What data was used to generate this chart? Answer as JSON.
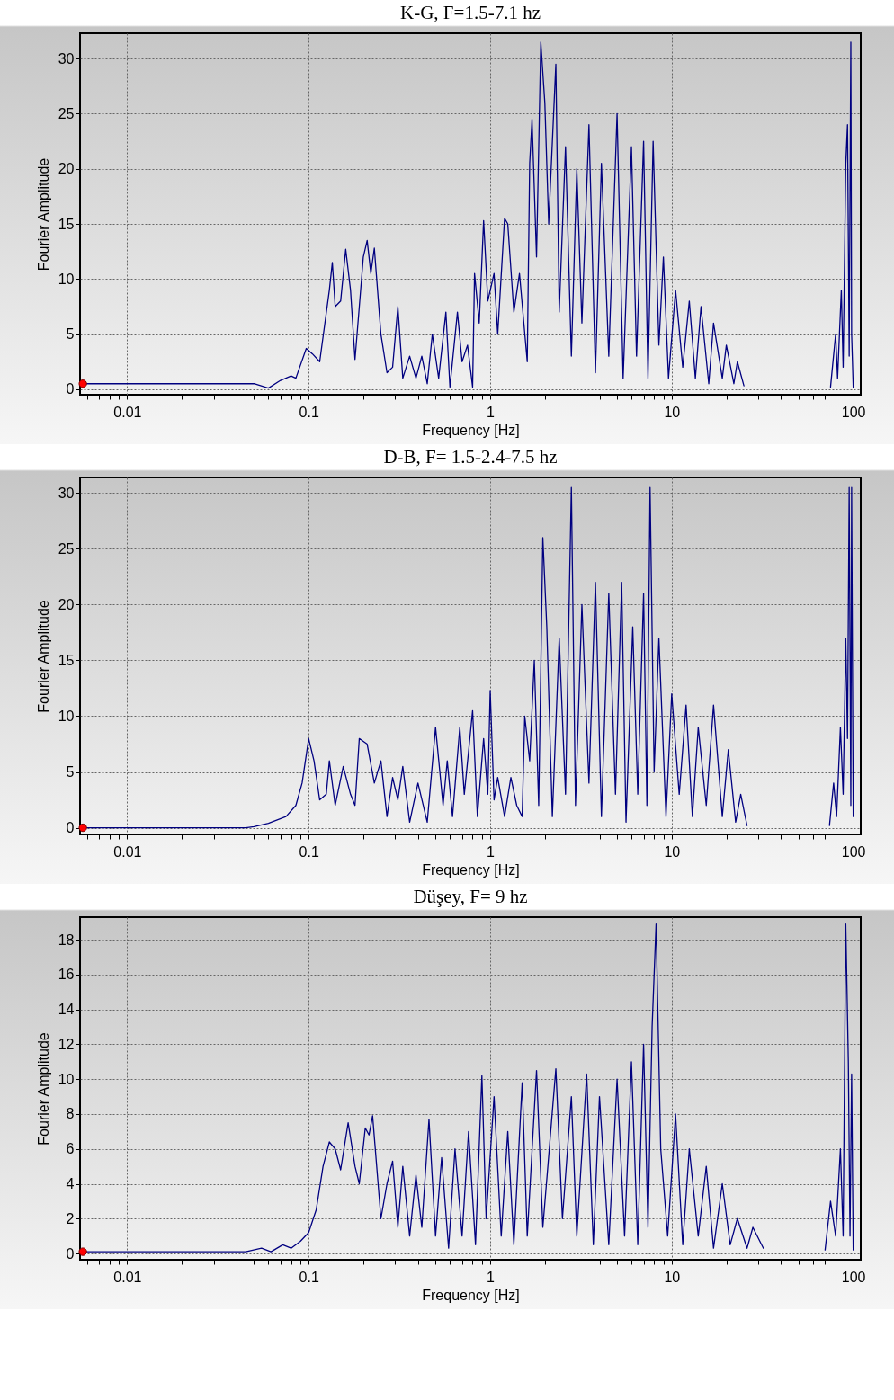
{
  "chart_data": [
    {
      "type": "line",
      "title": "K-G, F=1.5-7.1 hz",
      "xlabel": "Frequency [Hz]",
      "ylabel": "Fourier Amplitude",
      "log": "x",
      "grid": true,
      "xlim": [
        0.0055,
        110
      ],
      "ylim": [
        -0.5,
        32.3
      ],
      "xticks": [
        {
          "value": 0.006,
          "label": null
        },
        {
          "value": 0.007,
          "label": null
        },
        {
          "value": 0.008,
          "label": null
        },
        {
          "value": 0.009,
          "label": null
        },
        0.01,
        {
          "value": 0.02,
          "label": null
        },
        {
          "value": 0.03,
          "label": null
        },
        {
          "value": 0.04,
          "label": null
        },
        {
          "value": 0.05,
          "label": null
        },
        {
          "value": 0.06,
          "label": null
        },
        {
          "value": 0.07,
          "label": null
        },
        {
          "value": 0.08,
          "label": null
        },
        {
          "value": 0.09,
          "label": null
        },
        0.1,
        {
          "value": 0.2,
          "label": null
        },
        {
          "value": 0.3,
          "label": null
        },
        {
          "value": 0.4,
          "label": null
        },
        {
          "value": 0.5,
          "label": null
        },
        {
          "value": 0.6,
          "label": null
        },
        {
          "value": 0.7,
          "label": null
        },
        {
          "value": 0.8,
          "label": null
        },
        {
          "value": 0.9,
          "label": null
        },
        1,
        {
          "value": 2,
          "label": null
        },
        {
          "value": 3,
          "label": null
        },
        {
          "value": 4,
          "label": null
        },
        {
          "value": 5,
          "label": null
        },
        {
          "value": 6,
          "label": null
        },
        {
          "value": 7,
          "label": null
        },
        {
          "value": 8,
          "label": null
        },
        {
          "value": 9,
          "label": null
        },
        10,
        {
          "value": 20,
          "label": null
        },
        {
          "value": 30,
          "label": null
        },
        {
          "value": 40,
          "label": null
        },
        {
          "value": 50,
          "label": null
        },
        {
          "value": 60,
          "label": null
        },
        {
          "value": 70,
          "label": null
        },
        {
          "value": 80,
          "label": null
        },
        {
          "value": 90,
          "label": null
        },
        100
      ],
      "yticks": [
        0,
        5,
        10,
        15,
        20,
        25,
        30
      ],
      "series": [
        {
          "color": "#000080",
          "x": [
            0.0057,
            0.045,
            0.05,
            0.06,
            0.07,
            0.08,
            0.085,
            0.097,
            0.105,
            0.115,
            0.13,
            0.135,
            0.14,
            0.15,
            0.16,
            0.17,
            0.18,
            0.2,
            0.21,
            0.22,
            0.23,
            0.25,
            0.27,
            0.29,
            0.31,
            0.33,
            0.36,
            0.39,
            0.42,
            0.45,
            0.48,
            0.52,
            0.57,
            0.6,
            0.66,
            0.7,
            0.75,
            0.8,
            0.82,
            0.87,
            0.92,
            0.97,
            1.05,
            1.1,
            1.2,
            1.25,
            1.35,
            1.45,
            1.6,
            1.65,
            1.7,
            1.8,
            1.9,
            2.0,
            2.1,
            2.3,
            2.4,
            2.6,
            2.8,
            3.0,
            3.2,
            3.5,
            3.8,
            4.1,
            4.5,
            5.0,
            5.4,
            6.0,
            6.4,
            7.0,
            7.4,
            7.9,
            8.5,
            9.0,
            9.6,
            10.5,
            11.5,
            12.5,
            13.5,
            14.5,
            16,
            17,
            19,
            20,
            22,
            23,
            25,
            50,
            75,
            80,
            82,
            86,
            88,
            91,
            93,
            95,
            97,
            98,
            100
          ],
          "values": [
            0.5,
            0.5,
            0.5,
            0.1,
            0.8,
            1.2,
            1.0,
            3.7,
            3.2,
            2.5,
            9,
            11.5,
            7.5,
            8,
            12.7,
            9,
            2.7,
            12,
            13.5,
            10.5,
            12.8,
            5,
            1.5,
            2,
            7.5,
            1,
            3,
            1,
            3,
            0.5,
            5,
            1,
            7,
            0.2,
            7,
            2.5,
            4,
            0.2,
            10.5,
            6,
            15.3,
            8,
            10.5,
            5,
            15.5,
            15,
            7,
            10.5,
            2.5,
            20.5,
            24.5,
            12,
            31.5,
            26,
            15,
            29.5,
            7,
            22,
            3,
            20,
            6,
            24,
            1.5,
            20.5,
            3,
            25,
            1,
            22,
            3,
            22.5,
            1,
            22.5,
            4,
            12,
            1,
            9,
            2,
            8,
            1,
            7.5,
            0.5,
            6,
            1,
            4,
            0.5,
            2.5,
            0.3,
            null,
            0.2,
            5,
            1,
            9,
            2,
            20.5,
            24,
            3,
            31.5,
            5,
            0.2
          ]
        },
        {
          "type": "scatter",
          "color": "#ff0000",
          "marker": "circle",
          "x": [
            0.0057
          ],
          "values": [
            0.5
          ]
        }
      ]
    },
    {
      "type": "line",
      "title": "D-B, F= 1.5-2.4-7.5 hz",
      "xlabel": "Frequency [Hz]",
      "ylabel": "Fourier Amplitude",
      "log": "x",
      "grid": true,
      "xlim": [
        0.0055,
        110
      ],
      "ylim": [
        -0.6,
        31.4
      ],
      "xticks": [
        {
          "value": 0.006,
          "label": null
        },
        {
          "value": 0.007,
          "label": null
        },
        {
          "value": 0.008,
          "label": null
        },
        {
          "value": 0.009,
          "label": null
        },
        0.01,
        {
          "value": 0.02,
          "label": null
        },
        {
          "value": 0.03,
          "label": null
        },
        {
          "value": 0.04,
          "label": null
        },
        {
          "value": 0.05,
          "label": null
        },
        {
          "value": 0.06,
          "label": null
        },
        {
          "value": 0.07,
          "label": null
        },
        {
          "value": 0.08,
          "label": null
        },
        {
          "value": 0.09,
          "label": null
        },
        0.1,
        {
          "value": 0.2,
          "label": null
        },
        {
          "value": 0.3,
          "label": null
        },
        {
          "value": 0.4,
          "label": null
        },
        {
          "value": 0.5,
          "label": null
        },
        {
          "value": 0.6,
          "label": null
        },
        {
          "value": 0.7,
          "label": null
        },
        {
          "value": 0.8,
          "label": null
        },
        {
          "value": 0.9,
          "label": null
        },
        1,
        {
          "value": 2,
          "label": null
        },
        {
          "value": 3,
          "label": null
        },
        {
          "value": 4,
          "label": null
        },
        {
          "value": 5,
          "label": null
        },
        {
          "value": 6,
          "label": null
        },
        {
          "value": 7,
          "label": null
        },
        {
          "value": 8,
          "label": null
        },
        {
          "value": 9,
          "label": null
        },
        10,
        {
          "value": 20,
          "label": null
        },
        {
          "value": 30,
          "label": null
        },
        {
          "value": 40,
          "label": null
        },
        {
          "value": 50,
          "label": null
        },
        {
          "value": 60,
          "label": null
        },
        {
          "value": 70,
          "label": null
        },
        {
          "value": 80,
          "label": null
        },
        {
          "value": 90,
          "label": null
        },
        100
      ],
      "yticks": [
        0,
        5,
        10,
        15,
        20,
        25,
        30
      ],
      "series": [
        {
          "color": "#000080",
          "x": [
            0.0057,
            0.045,
            0.05,
            0.06,
            0.075,
            0.085,
            0.092,
            0.1,
            0.107,
            0.115,
            0.125,
            0.13,
            0.14,
            0.155,
            0.17,
            0.18,
            0.19,
            0.21,
            0.23,
            0.25,
            0.27,
            0.29,
            0.31,
            0.33,
            0.36,
            0.4,
            0.45,
            0.5,
            0.55,
            0.58,
            0.62,
            0.68,
            0.72,
            0.8,
            0.85,
            0.92,
            0.97,
            1.0,
            1.05,
            1.1,
            1.2,
            1.3,
            1.4,
            1.5,
            1.55,
            1.65,
            1.75,
            1.85,
            1.95,
            2.05,
            2.2,
            2.4,
            2.6,
            2.8,
            2.95,
            3.2,
            3.5,
            3.8,
            4.1,
            4.5,
            4.9,
            5.3,
            5.6,
            6.1,
            6.5,
            7.0,
            7.3,
            7.6,
            8.0,
            8.5,
            9.3,
            10,
            11,
            12,
            13,
            14,
            15.5,
            17,
            19,
            20.5,
            22.5,
            24,
            26,
            50,
            74,
            78,
            81,
            85,
            88,
            91,
            93,
            95,
            97,
            98,
            100
          ],
          "values": [
            0,
            0,
            0.1,
            0.4,
            1,
            2,
            4,
            8,
            6,
            2.5,
            3,
            6,
            2,
            5.5,
            3,
            2,
            8,
            7.5,
            4,
            6,
            1,
            4.5,
            2.5,
            5.5,
            0.5,
            4,
            0.5,
            9,
            2,
            6,
            1,
            9,
            3,
            10.5,
            1,
            8,
            3,
            12.3,
            2.5,
            4.5,
            1,
            4.5,
            2,
            1,
            10,
            6,
            15,
            2,
            26,
            18,
            1,
            17,
            3,
            30.5,
            2,
            20,
            4,
            22,
            1,
            21,
            3,
            22,
            0.5,
            18,
            3,
            21,
            2,
            30.5,
            5,
            17,
            1,
            12,
            3,
            11,
            1,
            9,
            2,
            11,
            1,
            7,
            0.5,
            3,
            0.2,
            null,
            0.2,
            4,
            1,
            9,
            3,
            17,
            8,
            30.5,
            2,
            30.5,
            1
          ]
        },
        {
          "type": "scatter",
          "color": "#ff0000",
          "marker": "circle",
          "x": [
            0.0057
          ],
          "values": [
            0
          ]
        }
      ]
    },
    {
      "type": "line",
      "title": "Düşey, F= 9 hz",
      "xlabel": "Frequency [Hz]",
      "ylabel": "Fourier Amplitude",
      "log": "x",
      "grid": true,
      "xlim": [
        0.0055,
        110
      ],
      "ylim": [
        -0.36,
        19.3
      ],
      "xticks": [
        {
          "value": 0.006,
          "label": null
        },
        {
          "value": 0.007,
          "label": null
        },
        {
          "value": 0.008,
          "label": null
        },
        {
          "value": 0.009,
          "label": null
        },
        0.01,
        {
          "value": 0.02,
          "label": null
        },
        {
          "value": 0.03,
          "label": null
        },
        {
          "value": 0.04,
          "label": null
        },
        {
          "value": 0.05,
          "label": null
        },
        {
          "value": 0.06,
          "label": null
        },
        {
          "value": 0.07,
          "label": null
        },
        {
          "value": 0.08,
          "label": null
        },
        {
          "value": 0.09,
          "label": null
        },
        0.1,
        {
          "value": 0.2,
          "label": null
        },
        {
          "value": 0.3,
          "label": null
        },
        {
          "value": 0.4,
          "label": null
        },
        {
          "value": 0.5,
          "label": null
        },
        {
          "value": 0.6,
          "label": null
        },
        {
          "value": 0.7,
          "label": null
        },
        {
          "value": 0.8,
          "label": null
        },
        {
          "value": 0.9,
          "label": null
        },
        1,
        {
          "value": 2,
          "label": null
        },
        {
          "value": 3,
          "label": null
        },
        {
          "value": 4,
          "label": null
        },
        {
          "value": 5,
          "label": null
        },
        {
          "value": 6,
          "label": null
        },
        {
          "value": 7,
          "label": null
        },
        {
          "value": 8,
          "label": null
        },
        {
          "value": 9,
          "label": null
        },
        10,
        {
          "value": 20,
          "label": null
        },
        {
          "value": 30,
          "label": null
        },
        {
          "value": 40,
          "label": null
        },
        {
          "value": 50,
          "label": null
        },
        {
          "value": 60,
          "label": null
        },
        {
          "value": 70,
          "label": null
        },
        {
          "value": 80,
          "label": null
        },
        {
          "value": 90,
          "label": null
        },
        100
      ],
      "yticks": [
        0,
        2,
        4,
        6,
        8,
        10,
        12,
        14,
        16,
        18
      ],
      "series": [
        {
          "color": "#000080",
          "x": [
            0.0057,
            0.045,
            0.055,
            0.062,
            0.072,
            0.08,
            0.09,
            0.1,
            0.11,
            0.12,
            0.13,
            0.14,
            0.15,
            0.165,
            0.18,
            0.19,
            0.205,
            0.215,
            0.225,
            0.25,
            0.27,
            0.29,
            0.31,
            0.33,
            0.36,
            0.39,
            0.42,
            0.46,
            0.5,
            0.54,
            0.59,
            0.64,
            0.7,
            0.76,
            0.83,
            0.9,
            0.95,
            1.05,
            1.15,
            1.25,
            1.35,
            1.5,
            1.6,
            1.8,
            1.95,
            2.3,
            2.5,
            2.8,
            3.0,
            3.4,
            3.7,
            4.0,
            4.5,
            5.0,
            5.5,
            6.0,
            6.5,
            7.0,
            7.4,
            7.8,
            8.2,
            8.7,
            9.5,
            10.5,
            11.5,
            12.5,
            14,
            15.5,
            17,
            19,
            21,
            23,
            26,
            28,
            32,
            50,
            70,
            75,
            80,
            85,
            88,
            91,
            94,
            96,
            98,
            100
          ],
          "values": [
            0.1,
            0.1,
            0.3,
            0.1,
            0.5,
            0.3,
            0.7,
            1.2,
            2.5,
            5,
            6.4,
            6,
            4.8,
            7.5,
            5,
            4,
            7.2,
            6.8,
            7.9,
            2,
            4,
            5.3,
            1.5,
            5,
            1,
            4.5,
            1.5,
            7.7,
            1,
            5.5,
            0.3,
            6,
            1,
            7,
            0.5,
            10.2,
            2,
            9,
            1,
            7,
            0.5,
            9.8,
            1,
            10.5,
            1.5,
            10.6,
            2,
            9,
            1,
            10.3,
            0.5,
            9,
            0.5,
            10,
            1,
            11,
            0.5,
            12,
            1.5,
            13,
            18.9,
            6,
            1,
            8,
            0.5,
            6,
            1,
            5,
            0.3,
            4,
            0.5,
            2,
            0.3,
            1.5,
            0.3,
            null,
            0.2,
            3,
            1,
            6,
            1,
            18.9,
            11,
            1,
            10.3,
            0.2
          ]
        },
        {
          "type": "scatter",
          "color": "#ff0000",
          "marker": "circle",
          "x": [
            0.0057
          ],
          "values": [
            0.1
          ]
        }
      ]
    }
  ]
}
